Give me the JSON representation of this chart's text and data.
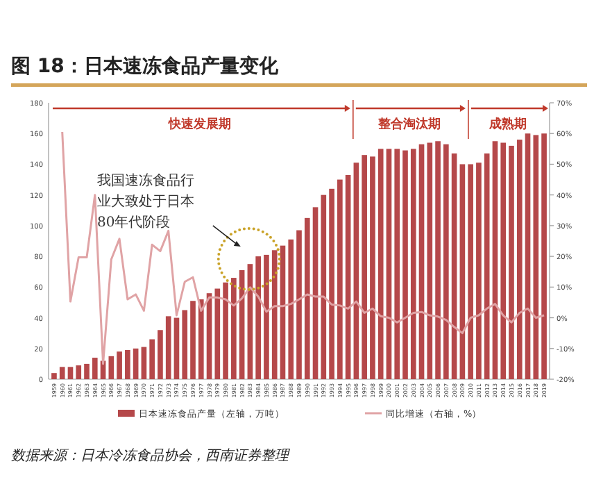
{
  "chart_data": {
    "type": "bar",
    "title": "图 18：日本速冻食品产量变化",
    "categories": [
      "1959",
      "1960",
      "1961",
      "1962",
      "1963",
      "1964",
      "1965",
      "1966",
      "1967",
      "1968",
      "1969",
      "1970",
      "1971",
      "1972",
      "1973",
      "1974",
      "1975",
      "1976",
      "1977",
      "1978",
      "1979",
      "1980",
      "1981",
      "1982",
      "1983",
      "1984",
      "1985",
      "1986",
      "1987",
      "1988",
      "1989",
      "1990",
      "1991",
      "1992",
      "1993",
      "1994",
      "1995",
      "1996",
      "1997",
      "1998",
      "1999",
      "2000",
      "2001",
      "2002",
      "2003",
      "2004",
      "2005",
      "2006",
      "2007",
      "2008",
      "2009",
      "2010",
      "2011",
      "2012",
      "2013",
      "2014",
      "2015",
      "2016",
      "2017",
      "2018",
      "2019"
    ],
    "series": [
      {
        "name": "日本速冻食品产量（左轴，万吨）",
        "color": "#b5484a",
        "values": [
          4,
          8,
          8,
          9,
          10,
          14,
          12,
          15,
          18,
          19,
          20,
          21,
          26,
          32,
          41,
          40,
          45,
          51,
          52,
          56,
          59,
          63,
          66,
          71,
          75,
          80,
          81,
          84,
          87,
          91,
          97,
          105,
          112,
          120,
          124,
          130,
          133,
          141,
          146,
          145,
          150,
          150,
          150,
          149,
          150,
          153,
          154,
          155,
          153,
          147,
          140,
          140,
          141,
          147,
          155,
          154,
          152,
          156,
          160,
          159,
          160
        ]
      },
      {
        "name": "同比增速（右轴，%）",
        "type": "line",
        "axis": "y2",
        "color": "#e0a3a5",
        "values": [
          null,
          60.5,
          5.3,
          19.7,
          19.7,
          40,
          -15,
          19,
          25.7,
          6,
          7.6,
          2.3,
          23.8,
          21.7,
          28.3,
          0.8,
          11.7,
          13.2,
          2.3,
          6.6,
          6.6,
          6,
          4,
          6.3,
          9.9,
          6.9,
          2,
          3.8,
          3.8,
          4.5,
          6,
          7.6,
          6.9,
          6.9,
          4.3,
          4,
          3,
          5.3,
          1.6,
          3,
          0.5,
          0,
          -1.5,
          0,
          1.6,
          1.9,
          0.8,
          0.4,
          -0.7,
          -3,
          -5,
          0,
          0.8,
          3,
          4.5,
          0.8,
          -1.5,
          1.6,
          3,
          0,
          0.8
        ]
      }
    ],
    "ylim": [
      0,
      180
    ],
    "yticks": [
      0,
      20,
      40,
      60,
      80,
      100,
      120,
      140,
      160,
      180
    ],
    "y2lim": [
      -20,
      70
    ],
    "y2ticks": [
      {
        "value": -20,
        "label": "-20%"
      },
      {
        "value": -10,
        "label": "-10%"
      },
      {
        "value": 0,
        "label": "0%"
      },
      {
        "value": 10,
        "label": "10%"
      },
      {
        "value": 20,
        "label": "20%"
      },
      {
        "value": 30,
        "label": "30%"
      },
      {
        "value": 40,
        "label": "40%"
      },
      {
        "value": 50,
        "label": "50%"
      },
      {
        "value": 60,
        "label": "60%"
      },
      {
        "value": 70,
        "label": "70%"
      }
    ],
    "annotations": [
      "快速发展期",
      "整合淘汰期",
      "成熟期",
      "我国速冻食品行业大致处于日本80年代阶段",
      "数据来源：日本冷冻食品协会，西南证券整理"
    ],
    "legend": "bottom",
    "grid": false
  }
}
